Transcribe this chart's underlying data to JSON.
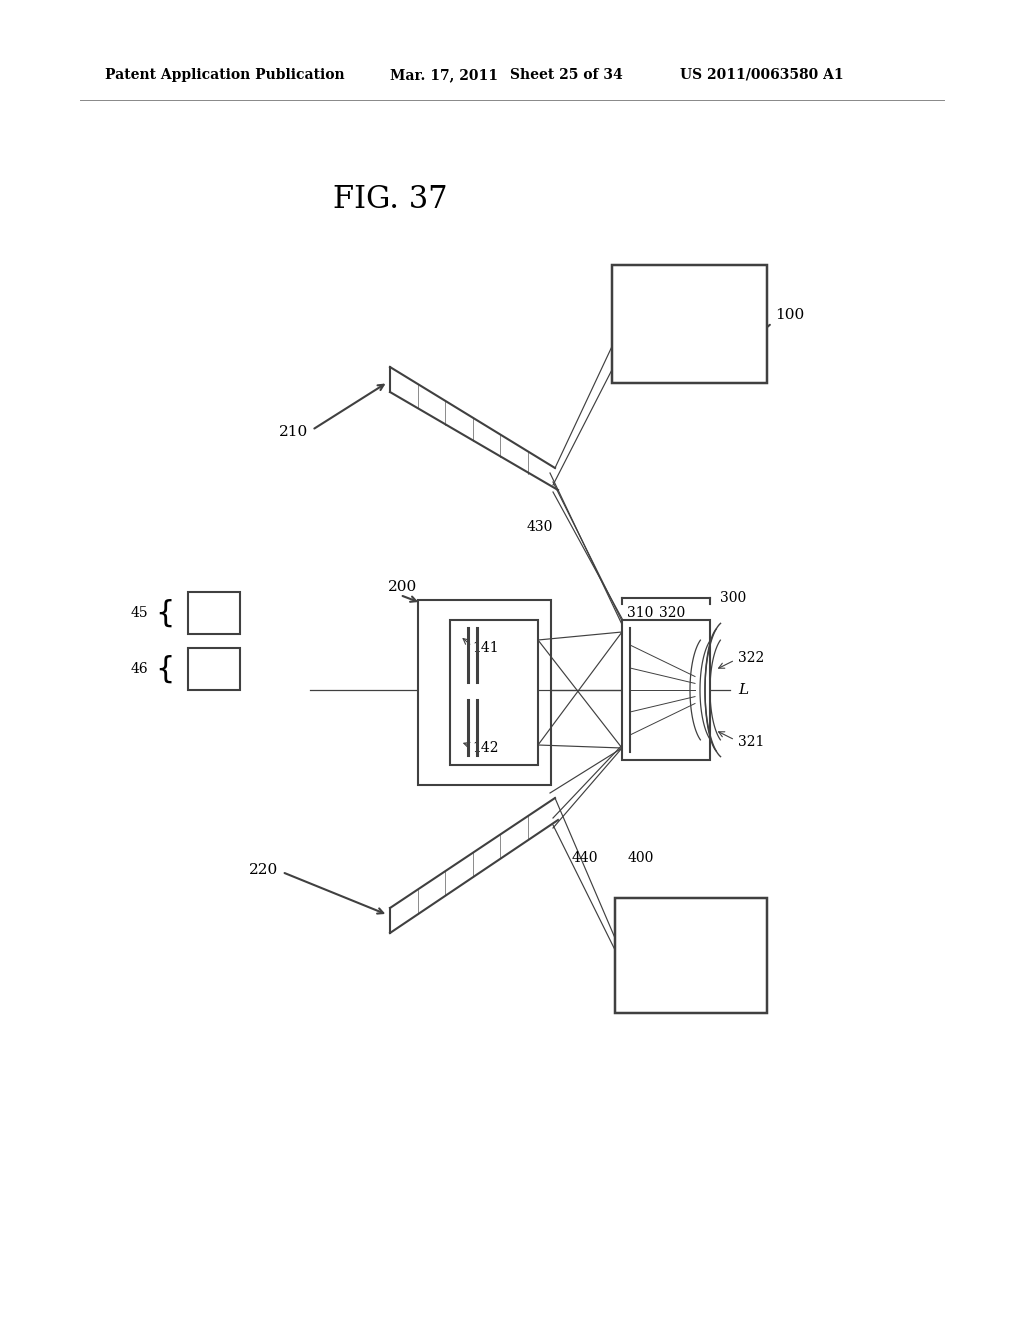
{
  "bg_color": "#ffffff",
  "header_text": "Patent Application Publication",
  "header_date": "Mar. 17, 2011",
  "header_sheet": "Sheet 25 of 34",
  "header_patent": "US 2011/0063580 A1",
  "fig_label": "FIG. 37",
  "label_100": "100",
  "label_210": "210",
  "label_220": "220",
  "label_200": "200",
  "label_141": "141",
  "label_142": "142",
  "label_300": "300",
  "label_310": "310",
  "label_320": "320",
  "label_321": "321",
  "label_322": "322",
  "label_430": "430",
  "label_440": "440",
  "label_400": "400",
  "label_45": "45",
  "label_46": "46",
  "label_L": "L",
  "line_color": "#404040",
  "line_width": 1.5,
  "text_color": "#000000"
}
